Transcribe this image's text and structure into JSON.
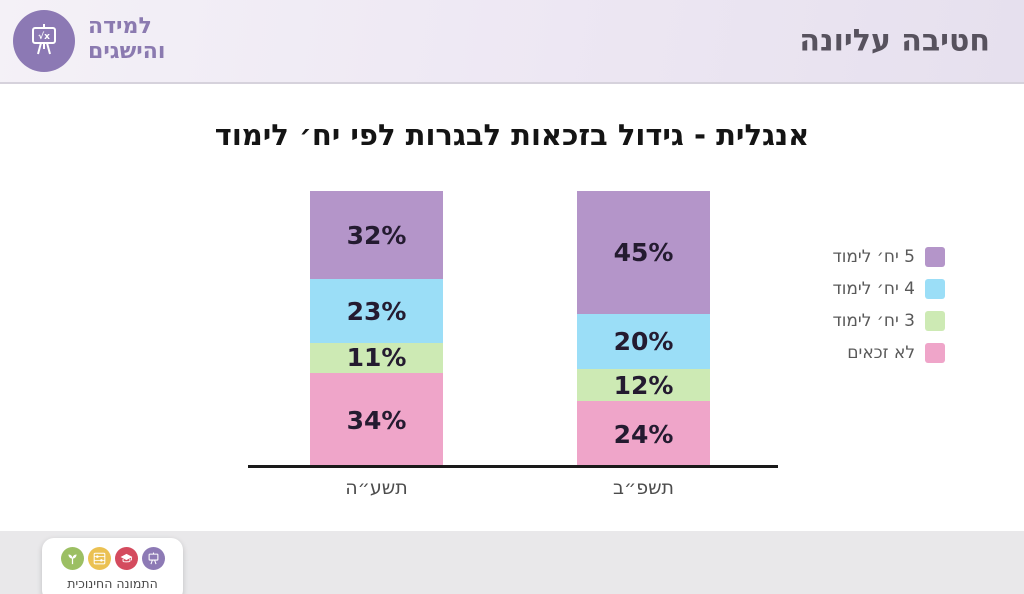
{
  "header": {
    "logo": {
      "text_line1": "למידה",
      "text_line2": "והישגים",
      "icon_label": "√x",
      "circle_color": "#8c79b4"
    },
    "title": "חטיבה עליונה"
  },
  "chart_data": {
    "type": "bar",
    "stacked": true,
    "title": "אנגלית - גידול בזכאות לבגרות לפי יח׳ לימוד",
    "categories": [
      "תשע״ה",
      "תשפ״ב"
    ],
    "series": [
      {
        "name": "5 יח׳ לימוד",
        "color": "#b495c9",
        "values": [
          32,
          45
        ]
      },
      {
        "name": "4 יח׳ לימוד",
        "color": "#9bdef7",
        "values": [
          23,
          20
        ]
      },
      {
        "name": "3 יח׳ לימוד",
        "color": "#cdeab4",
        "values": [
          11,
          12
        ]
      },
      {
        "name": "לא זכאים",
        "color": "#efa5c9",
        "values": [
          34,
          24
        ]
      }
    ],
    "value_suffix": "%",
    "ylim": [
      0,
      100
    ],
    "grid": false,
    "legend_position": "right",
    "stack_order": "first-series-on-top",
    "axis_color": "#1a1a1a"
  },
  "footer": {
    "badge": {
      "label": "התמונה החינוכית",
      "icons": [
        {
          "name": "seedling-icon",
          "color": "#9cbf63"
        },
        {
          "name": "abacus-icon",
          "color": "#ebc152"
        },
        {
          "name": "graduation-cap-icon",
          "color": "#d44b5e"
        },
        {
          "name": "easel-icon",
          "color": "#8d7ab5"
        }
      ]
    }
  }
}
